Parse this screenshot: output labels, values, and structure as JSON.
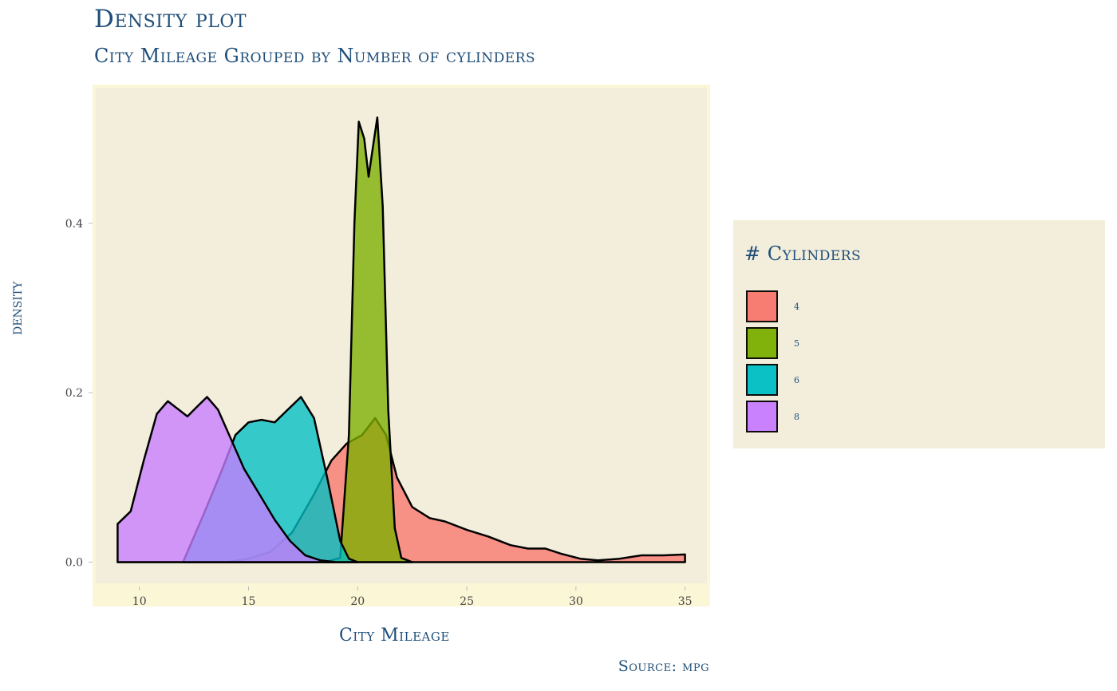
{
  "chart_data": {
    "type": "area",
    "title": "Density plot",
    "subtitle": "City Mileage Grouped by Number of cylinders",
    "xlabel": "City Mileage",
    "ylabel": "density",
    "caption": "Source: mpg",
    "xlim": [
      8,
      36
    ],
    "ylim": [
      -0.025,
      0.56
    ],
    "x_ticks": [
      "10",
      "15",
      "20",
      "25",
      "30",
      "35"
    ],
    "y_ticks": [
      "0.0",
      "0.2",
      "0.4"
    ],
    "legend": {
      "title": "# Cylinders",
      "position": "right"
    },
    "background": "#f2eedb",
    "series": [
      {
        "name": "4",
        "color": "#f8766d",
        "points": [
          [
            9,
            0
          ],
          [
            14,
            0
          ],
          [
            15,
            0.004
          ],
          [
            16,
            0.012
          ],
          [
            17,
            0.035
          ],
          [
            18,
            0.08
          ],
          [
            18.8,
            0.12
          ],
          [
            19.5,
            0.14
          ],
          [
            20.2,
            0.15
          ],
          [
            20.8,
            0.17
          ],
          [
            21.3,
            0.15
          ],
          [
            21.8,
            0.1
          ],
          [
            22.5,
            0.065
          ],
          [
            23.3,
            0.052
          ],
          [
            24,
            0.048
          ],
          [
            25,
            0.038
          ],
          [
            26,
            0.03
          ],
          [
            27,
            0.02
          ],
          [
            27.8,
            0.016
          ],
          [
            28.6,
            0.016
          ],
          [
            29.3,
            0.01
          ],
          [
            30.2,
            0.004
          ],
          [
            31,
            0.002
          ],
          [
            32,
            0.004
          ],
          [
            33,
            0.008
          ],
          [
            34,
            0.008
          ],
          [
            35,
            0.009
          ]
        ]
      },
      {
        "name": "5",
        "color": "#7cae00",
        "points": [
          [
            18.5,
            0
          ],
          [
            19.2,
            0.005
          ],
          [
            19.6,
            0.15
          ],
          [
            19.85,
            0.4
          ],
          [
            20.05,
            0.52
          ],
          [
            20.3,
            0.5
          ],
          [
            20.5,
            0.455
          ],
          [
            20.7,
            0.49
          ],
          [
            20.9,
            0.525
          ],
          [
            21.15,
            0.42
          ],
          [
            21.4,
            0.18
          ],
          [
            21.7,
            0.04
          ],
          [
            22,
            0.005
          ],
          [
            22.5,
            0
          ]
        ]
      },
      {
        "name": "6",
        "color": "#00bfc4",
        "points": [
          [
            12,
            0
          ],
          [
            13,
            0.06
          ],
          [
            13.8,
            0.11
          ],
          [
            14.4,
            0.15
          ],
          [
            15,
            0.165
          ],
          [
            15.6,
            0.168
          ],
          [
            16.2,
            0.165
          ],
          [
            16.8,
            0.18
          ],
          [
            17.4,
            0.195
          ],
          [
            18,
            0.17
          ],
          [
            18.6,
            0.1
          ],
          [
            19.2,
            0.025
          ],
          [
            19.6,
            0.004
          ],
          [
            20,
            0
          ]
        ]
      },
      {
        "name": "8",
        "color": "#c77cff",
        "points": [
          [
            9,
            0.045
          ],
          [
            9.6,
            0.06
          ],
          [
            10.2,
            0.12
          ],
          [
            10.8,
            0.175
          ],
          [
            11.3,
            0.19
          ],
          [
            11.8,
            0.18
          ],
          [
            12.2,
            0.172
          ],
          [
            12.7,
            0.185
          ],
          [
            13.1,
            0.195
          ],
          [
            13.6,
            0.18
          ],
          [
            14.2,
            0.145
          ],
          [
            14.8,
            0.11
          ],
          [
            15.5,
            0.08
          ],
          [
            16.2,
            0.05
          ],
          [
            16.9,
            0.025
          ],
          [
            17.6,
            0.008
          ],
          [
            18.3,
            0.002
          ],
          [
            19,
            0
          ]
        ]
      }
    ]
  }
}
